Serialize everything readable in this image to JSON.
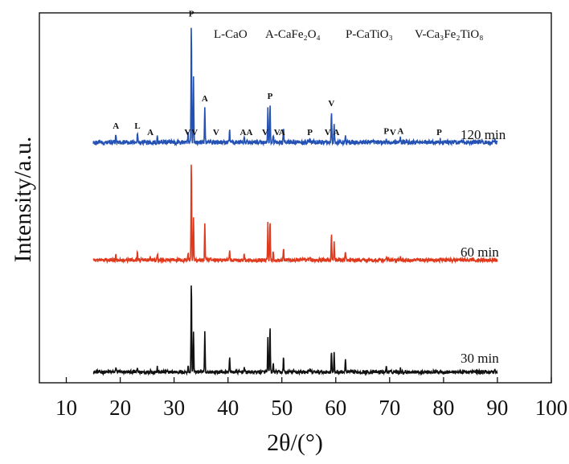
{
  "chart_data": {
    "type": "line",
    "xlabel": "2θ/(°)",
    "ylabel": "Intensity/a.u.",
    "xlim": [
      5,
      100
    ],
    "xticks": [
      10,
      20,
      30,
      40,
      50,
      60,
      70,
      80,
      90,
      100
    ],
    "yticks": [],
    "legend": [
      {
        "code": "L",
        "phase": "CaO"
      },
      {
        "code": "A",
        "phase": "CaFe₂O₄"
      },
      {
        "code": "P",
        "phase": "CaTiO₃"
      },
      {
        "code": "V",
        "phase": "Ca₃Fe₂TiO₈"
      }
    ],
    "series": [
      {
        "name": "30 min",
        "color": "#111111",
        "x": [
          15,
          19.2,
          23.2,
          25.6,
          26.9,
          32.6,
          33.2,
          33.6,
          35.7,
          40.3,
          43,
          47.4,
          47.8,
          48.4,
          50.3,
          55.2,
          59.2,
          59.7,
          61.8,
          69.4,
          72,
          79.4,
          89.5,
          90
        ],
        "y": [
          0.03,
          0.09,
          0.07,
          0.06,
          0.08,
          0.1,
          1.0,
          0.45,
          0.45,
          0.2,
          0.08,
          0.38,
          0.5,
          0.12,
          0.18,
          0.06,
          0.25,
          0.22,
          0.16,
          0.09,
          0.07,
          0.05,
          0.06,
          0.03
        ]
      },
      {
        "name": "60 min",
        "color": "#e03a1e",
        "x": [
          15,
          19.2,
          23.2,
          25.6,
          26.9,
          32.6,
          33.2,
          33.6,
          35.7,
          40.3,
          43,
          47.4,
          47.8,
          48.4,
          50.3,
          55.2,
          59.2,
          59.7,
          61.8,
          69.4,
          72,
          79.4,
          89.5,
          90
        ],
        "y": [
          0.03,
          0.09,
          0.12,
          0.06,
          0.08,
          0.1,
          1.0,
          0.45,
          0.38,
          0.12,
          0.08,
          0.38,
          0.42,
          0.12,
          0.15,
          0.06,
          0.3,
          0.22,
          0.12,
          0.06,
          0.05,
          0.05,
          0.04,
          0.03
        ]
      },
      {
        "name": "120 min",
        "color": "#2451b4",
        "x": [
          15,
          19.2,
          23.2,
          25.6,
          26.9,
          32.6,
          33.2,
          33.6,
          35.7,
          40.3,
          43,
          47.4,
          47.8,
          48.4,
          50.3,
          55.2,
          59.2,
          59.7,
          61.8,
          69.4,
          72,
          79.4,
          89.5,
          90
        ],
        "y": [
          0.03,
          0.1,
          0.1,
          0.05,
          0.08,
          0.12,
          1.0,
          0.55,
          0.32,
          0.14,
          0.08,
          0.3,
          0.34,
          0.1,
          0.16,
          0.05,
          0.28,
          0.18,
          0.1,
          0.06,
          0.06,
          0.05,
          0.04,
          0.03
        ]
      }
    ],
    "peak_labels": [
      {
        "x": 19.2,
        "label": "A"
      },
      {
        "x": 23.2,
        "label": "L"
      },
      {
        "x": 25.6,
        "label": "A"
      },
      {
        "x": 32.5,
        "label": "V"
      },
      {
        "x": 33.2,
        "label": "P"
      },
      {
        "x": 33.8,
        "label": "V"
      },
      {
        "x": 35.7,
        "label": "A"
      },
      {
        "x": 37.8,
        "label": "V"
      },
      {
        "x": 42.8,
        "label": "A"
      },
      {
        "x": 44,
        "label": "A"
      },
      {
        "x": 46.9,
        "label": "V"
      },
      {
        "x": 47.8,
        "label": "P"
      },
      {
        "x": 49.1,
        "label": "V"
      },
      {
        "x": 50,
        "label": "A"
      },
      {
        "x": 55.2,
        "label": "P"
      },
      {
        "x": 58.5,
        "label": "V"
      },
      {
        "x": 59.2,
        "label": "V"
      },
      {
        "x": 60.1,
        "label": "A"
      },
      {
        "x": 69.4,
        "label": "P"
      },
      {
        "x": 70.6,
        "label": "V"
      },
      {
        "x": 72,
        "label": "A"
      },
      {
        "x": 79.2,
        "label": "P"
      }
    ]
  }
}
